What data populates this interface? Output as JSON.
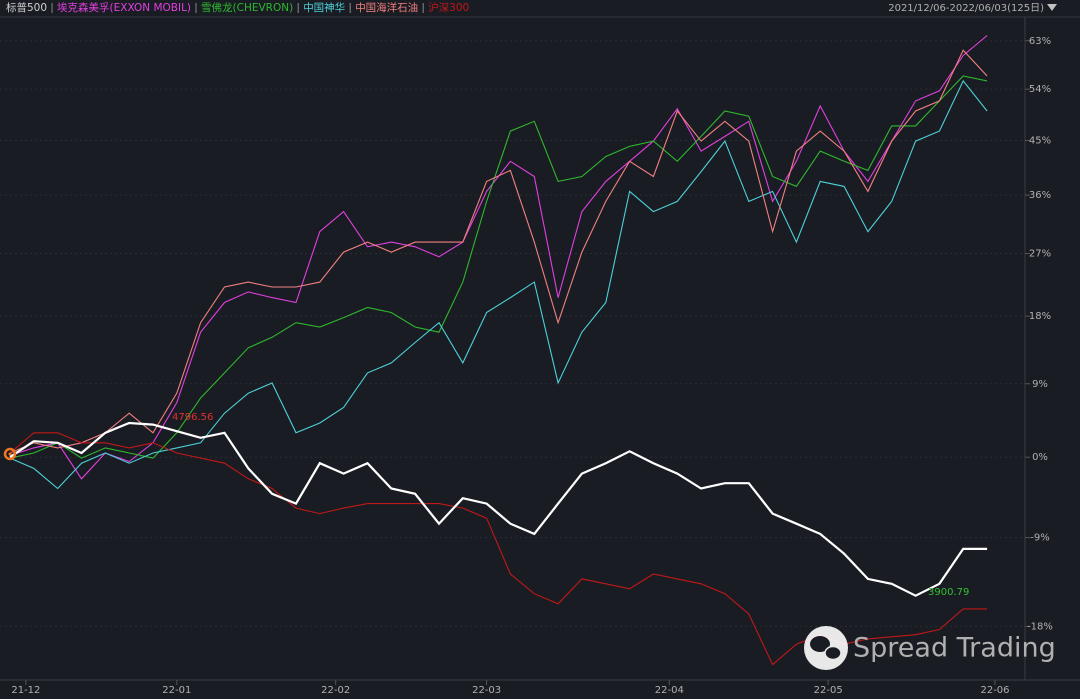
{
  "chart_data": {
    "type": "line",
    "legend": [
      "标普500"
    ],
    "date_range": "2021/12/06-2022/06/03(125日)",
    "x": [
      0,
      3,
      6,
      9,
      12,
      15,
      18,
      21,
      24,
      27,
      30,
      33,
      36,
      39,
      42,
      45,
      48,
      51,
      54,
      57,
      60,
      63,
      66,
      69,
      72,
      75,
      78,
      81,
      84,
      87,
      90,
      93,
      96,
      99,
      102,
      105,
      108,
      111,
      114,
      117,
      120,
      123
    ],
    "xlim": [
      0,
      124
    ],
    "xticks": [
      {
        "value": 2,
        "label": "21-12"
      },
      {
        "value": 21,
        "label": "22-01"
      },
      {
        "value": 41,
        "label": "22-02"
      },
      {
        "value": 60,
        "label": "22-03"
      },
      {
        "value": 83,
        "label": "22-04"
      },
      {
        "value": 103,
        "label": "22-05"
      },
      {
        "value": 124,
        "label": "22-06"
      }
    ],
    "ylim": [
      -23,
      68
    ],
    "log_scale": true,
    "yticks": [
      {
        "value": 63,
        "label": "63%"
      },
      {
        "value": 54,
        "label": "54%"
      },
      {
        "value": 45,
        "label": "45%"
      },
      {
        "value": 36,
        "label": "36%"
      },
      {
        "value": 27,
        "label": "27%"
      },
      {
        "value": 18,
        "label": "18%"
      },
      {
        "value": 9,
        "label": "9%"
      },
      {
        "value": 0,
        "label": "0%"
      },
      {
        "value": -9,
        "label": "-9%"
      },
      {
        "value": -18,
        "label": "-18%"
      }
    ],
    "grid": true,
    "series": [
      {
        "name": "标普500",
        "color": "#ffffff",
        "values": [
          0,
          1.9,
          1.7,
          0.5,
          2.9,
          4.1,
          3.9,
          3.1,
          2.3,
          2.9,
          -1.3,
          -4.2,
          -5.3,
          -0.7,
          -1.9,
          -0.7,
          -3.6,
          -4.2,
          -7.5,
          -4.7,
          -5.3,
          -7.5,
          -8.6,
          -5.3,
          -1.9,
          -0.7,
          0.7,
          -0.7,
          -1.9,
          -3.6,
          -3,
          -3,
          -6.4,
          -7.5,
          -8.6,
          -10.7,
          -13.3,
          -13.8,
          -15,
          -13.8,
          -10.2,
          -10.2
        ]
      },
      {
        "name": "埃克森美孚(EXXON MOBIL)",
        "color": "#e040e0",
        "values": [
          0.2,
          1.1,
          1.7,
          -2.5,
          0.5,
          -0.5,
          1.7,
          6.6,
          15.8,
          19.9,
          21.4,
          20.6,
          19.9,
          30.3,
          33.4,
          28.0,
          28.7,
          28.0,
          26.5,
          28.7,
          36.6,
          41.5,
          39.0,
          20.6,
          33.4,
          38.2,
          41.5,
          44.9,
          50.5,
          43.2,
          45.7,
          48.3,
          35.0,
          41.5,
          51.0,
          43.2,
          38.2,
          44.9,
          51.9,
          53.7,
          60.2,
          64.0
        ]
      },
      {
        "name": "雪佛龙(CHEVRON)",
        "color": "#2eb82e",
        "values": [
          -0.1,
          0.5,
          1.7,
          -0.1,
          1.1,
          0.5,
          -0.1,
          2.9,
          7.2,
          10.4,
          13.7,
          15.1,
          17.1,
          16.5,
          17.8,
          19.2,
          18.5,
          16.5,
          15.8,
          22.8,
          35.0,
          46.6,
          48.3,
          38.2,
          39.0,
          42.3,
          44.0,
          44.9,
          41.5,
          45.7,
          50.1,
          49.2,
          39.0,
          37.4,
          43.2,
          41.5,
          40.0,
          47.5,
          47.5,
          51.9,
          56.4,
          55.5
        ]
      },
      {
        "name": "中国神华",
        "color": "#4dd0d8",
        "values": [
          -0.1,
          -1.3,
          -3.6,
          -0.7,
          0.5,
          -0.7,
          0.5,
          1.1,
          1.7,
          5.3,
          7.8,
          9.1,
          2.9,
          4.1,
          6.0,
          10.4,
          11.7,
          14.4,
          17.1,
          11.7,
          18.5,
          20.6,
          22.8,
          9.1,
          15.8,
          19.9,
          36.6,
          33.4,
          35.0,
          39.8,
          44.9,
          35.0,
          36.6,
          28.7,
          38.2,
          37.4,
          30.3,
          35.0,
          44.9,
          46.6,
          55.5,
          50.1
        ]
      },
      {
        "name": "中国海洋石油",
        "color": "#f08080",
        "values": [
          0.5,
          1.7,
          1.1,
          1.7,
          2.9,
          5.3,
          2.9,
          7.8,
          17.1,
          22.1,
          22.8,
          22.1,
          22.1,
          22.8,
          27.2,
          28.7,
          27.2,
          28.7,
          28.7,
          28.7,
          38.2,
          40.0,
          28.7,
          17.1,
          27.2,
          35.0,
          41.5,
          39.0,
          50.1,
          44.9,
          48.3,
          44.9,
          30.3,
          43.2,
          46.6,
          43.2,
          36.6,
          44.9,
          50.1,
          51.9,
          61.2,
          56.4
        ]
      },
      {
        "name": "沪深300",
        "color": "#c01818",
        "values": [
          0.5,
          2.9,
          2.9,
          1.7,
          1.7,
          1.1,
          1.7,
          0.5,
          -0.1,
          -0.7,
          -2.5,
          -3.6,
          -5.8,
          -6.4,
          -5.8,
          -5.3,
          -5.3,
          -5.3,
          -5.3,
          -5.8,
          -6.9,
          -12.8,
          -14.8,
          -15.8,
          -13.3,
          -13.8,
          -14.3,
          -12.8,
          -13.3,
          -13.8,
          -14.8,
          -16.8,
          -21.6,
          -19.7,
          -18.8,
          -19.7,
          -19.2,
          -19.0,
          -18.8,
          -18.3,
          -16.3,
          -16.3
        ]
      }
    ],
    "annotations": [
      {
        "text": "4796.56",
        "color": "#e03030"
      },
      {
        "text": "3900.79",
        "color": "#30c030"
      }
    ],
    "watermark": "Spread Trading"
  }
}
